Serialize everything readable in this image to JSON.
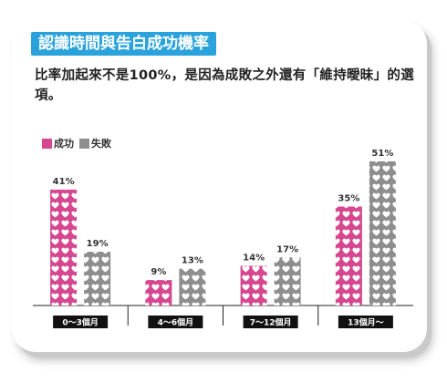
{
  "title": "認識時間與告白成功機率",
  "subtitle": "比率加起來不是100%，是因為成敗之外還有「維持曖昧」的選項。",
  "colors": {
    "success": "#d6478f",
    "failure": "#8e8e8e",
    "accent": "#2aa3dc"
  },
  "chart_data": {
    "type": "bar",
    "categories": [
      "0〜3個月",
      "4〜6個月",
      "7〜12個月",
      "13個月〜"
    ],
    "series": [
      {
        "name": "成功",
        "values": [
          41,
          9,
          14,
          35
        ],
        "labels": [
          "41%",
          "9%",
          "14%",
          "35%"
        ]
      },
      {
        "name": "失敗",
        "values": [
          19,
          13,
          17,
          51
        ],
        "labels": [
          "19%",
          "13%",
          "17%",
          "51%"
        ]
      }
    ],
    "legend_position": "top-left",
    "grid": false,
    "ylim": [
      0,
      60
    ]
  }
}
